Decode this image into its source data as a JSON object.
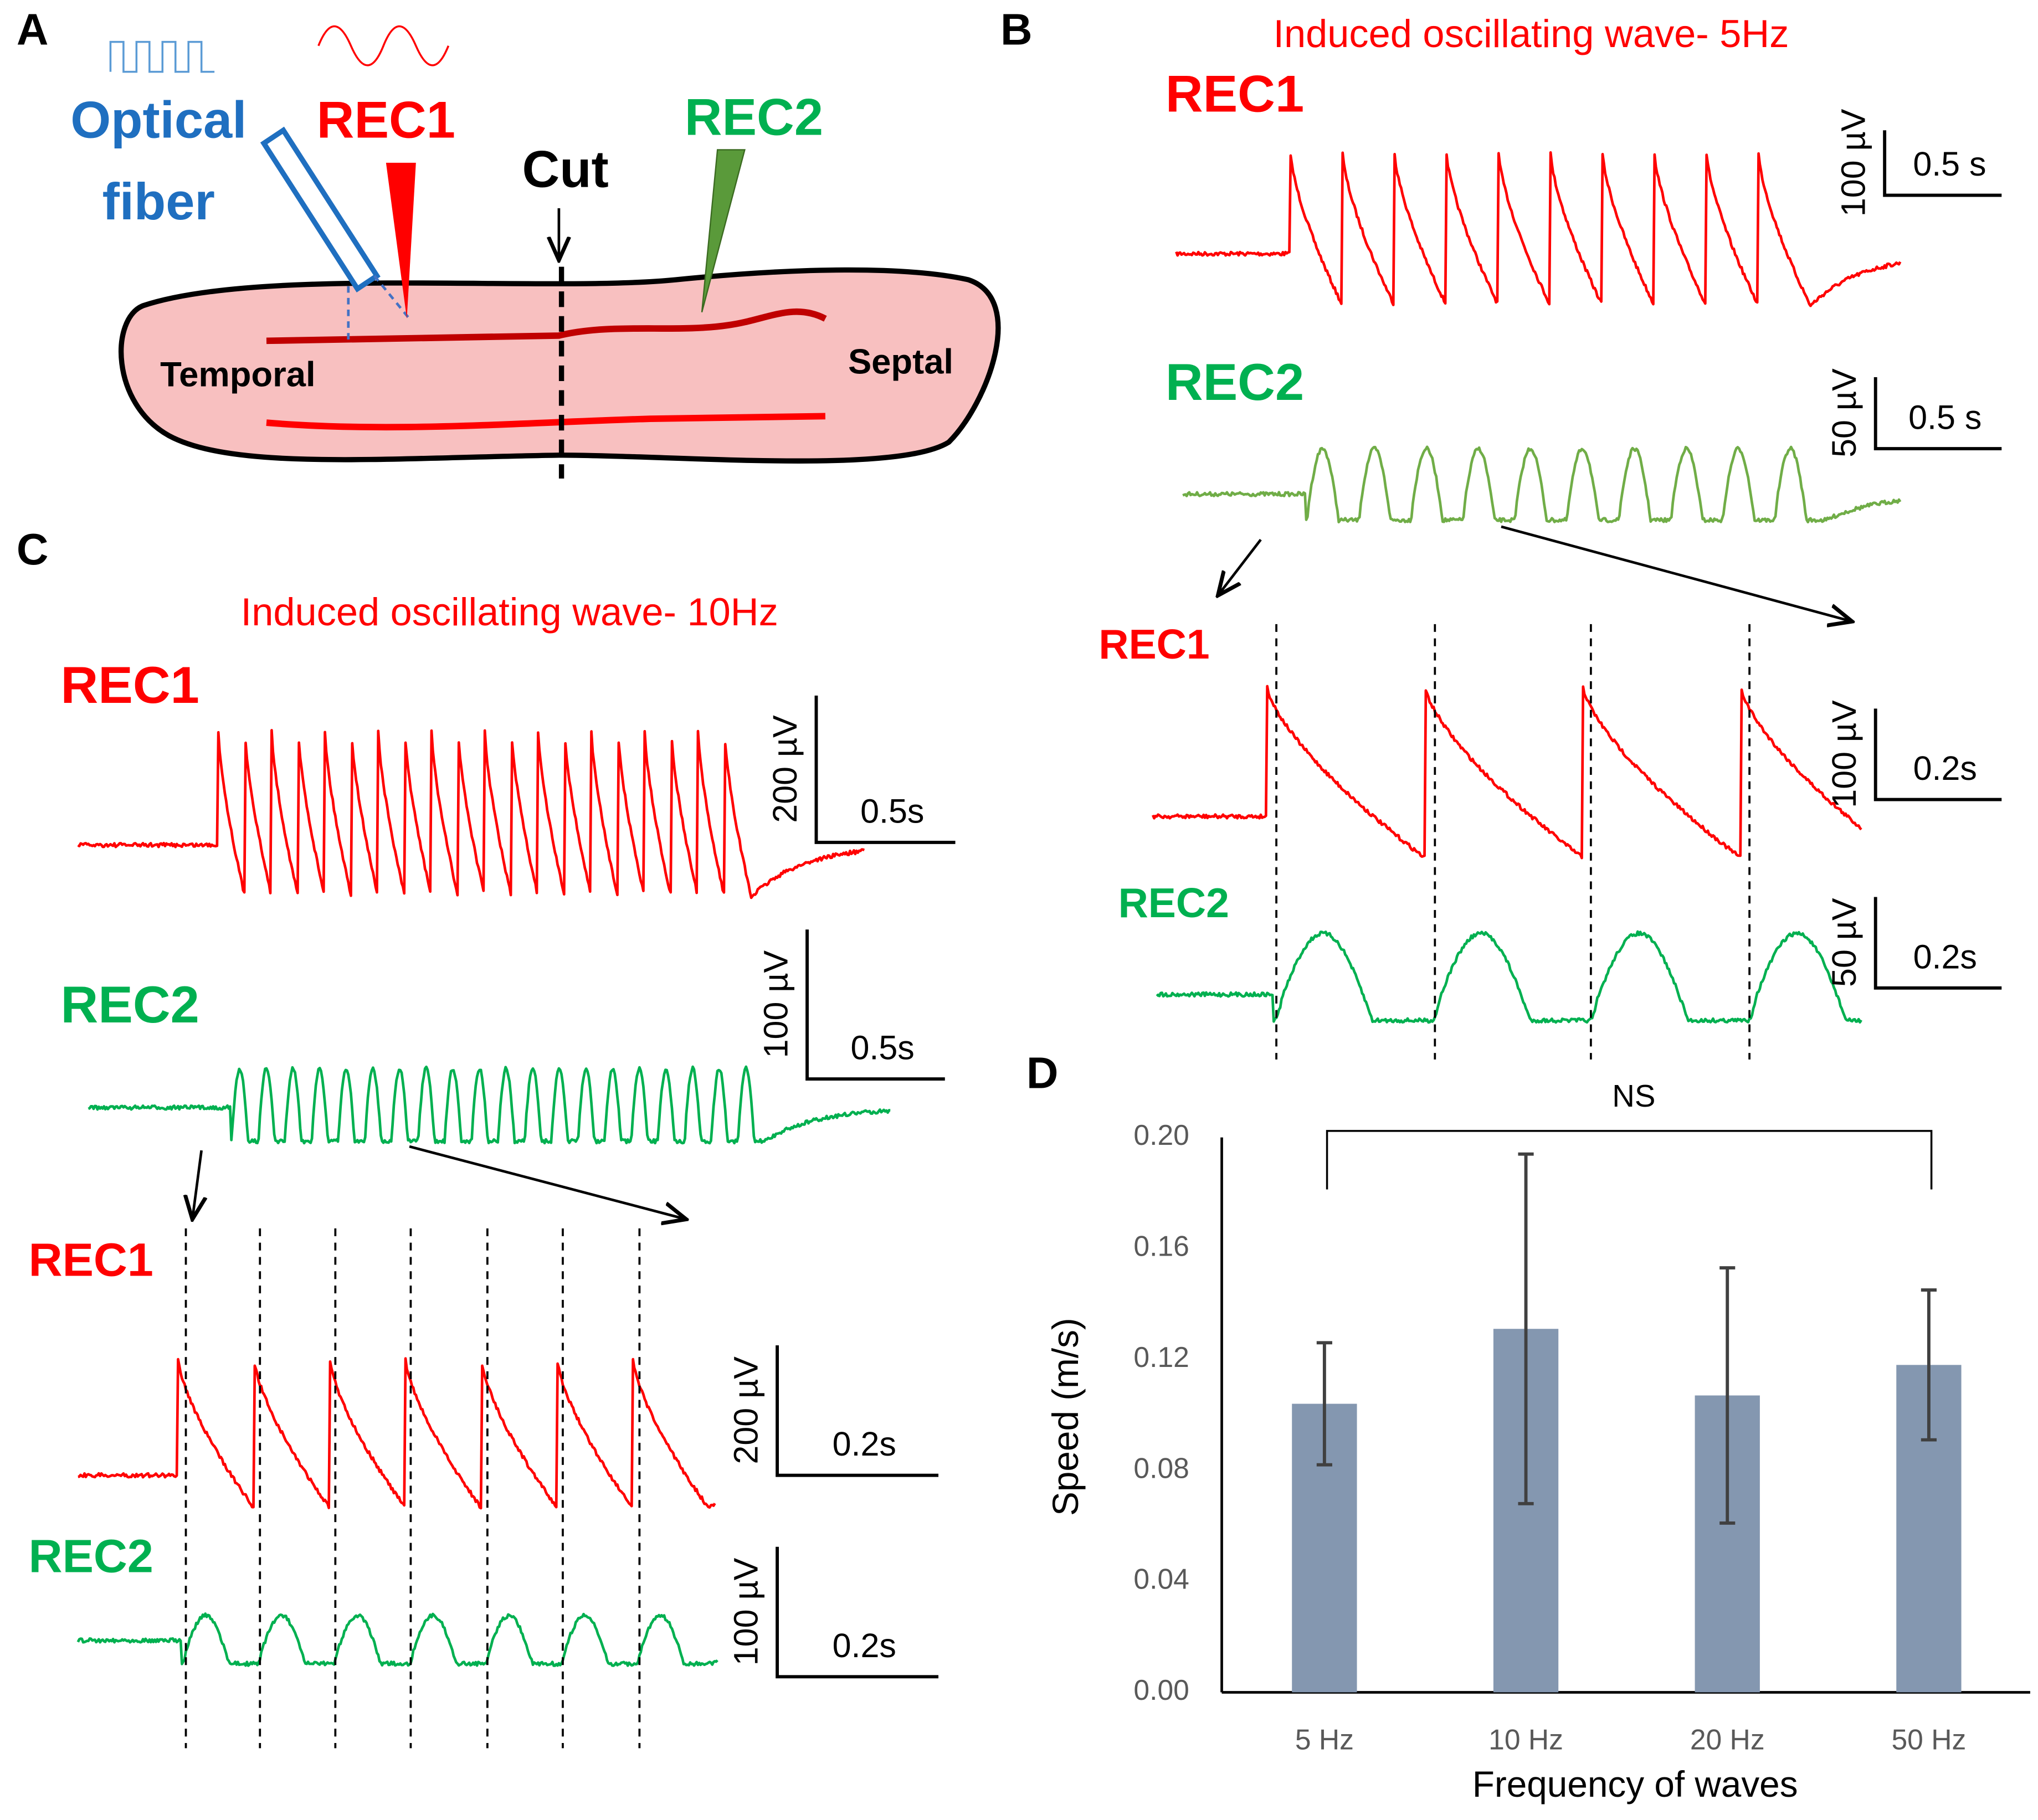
{
  "panels": {
    "A": {
      "label": "A",
      "fiber": [
        "Optical",
        "fiber"
      ],
      "rec1": "REC1",
      "rec2": "REC2",
      "cut": "Cut",
      "temporal": "Temporal",
      "septal": "Septal"
    },
    "B": {
      "label": "B",
      "title": "Induced oscillating wave- 5Hz",
      "traces": [
        {
          "name": "REC1",
          "scale_y": "100 µV",
          "scale_x": "0.5 s"
        },
        {
          "name": "REC2",
          "scale_y": "50 µV",
          "scale_x": "0.5 s"
        },
        {
          "name": "REC1",
          "scale_y": "100 µV",
          "scale_x": "0.2s"
        },
        {
          "name": "REC2",
          "scale_y": "50 µV",
          "scale_x": "0.2s"
        }
      ]
    },
    "C": {
      "label": "C",
      "title": "Induced oscillating wave- 10Hz",
      "traces": [
        {
          "name": "REC1",
          "scale_y": "200 µV",
          "scale_x": "0.5s"
        },
        {
          "name": "REC2",
          "scale_y": "100 µV",
          "scale_x": "0.5s"
        },
        {
          "name": "REC1",
          "scale_y": "200 µV",
          "scale_x": "0.2s"
        },
        {
          "name": "REC2",
          "scale_y": "100 µV",
          "scale_x": "0.2s"
        }
      ]
    },
    "D": {
      "label": "D"
    }
  },
  "chart_data": {
    "type": "bar",
    "categories": [
      "5 Hz",
      "10 Hz",
      "20 Hz",
      "50 Hz"
    ],
    "values": [
      0.104,
      0.131,
      0.107,
      0.118
    ],
    "errors": [
      0.022,
      0.063,
      0.046,
      0.027
    ],
    "color": "#8497b0",
    "ylim": [
      0,
      0.2
    ],
    "yticks": [
      {
        "value": 0,
        "label": "0.00"
      },
      0.04,
      0.08,
      0.12,
      0.16,
      {
        "value": 0.2,
        "label": "0.20"
      }
    ],
    "xlabel": "Frequency of waves",
    "ylabel": "Speed (m/s)",
    "annotation": "NS"
  }
}
